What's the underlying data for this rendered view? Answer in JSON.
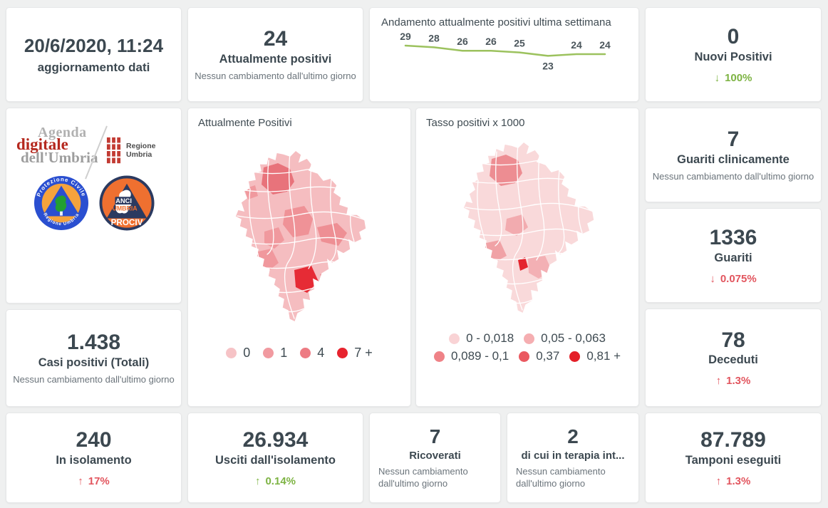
{
  "colors": {
    "green": "#7db343",
    "red": "#e2555e",
    "dark": "#3c4850",
    "gray": "#6b747b"
  },
  "cards": {
    "update": {
      "value": "20/6/2020, 11:24",
      "label": "aggiornamento dati"
    },
    "attualmente_positivi": {
      "value": "24",
      "label": "Attualmente positivi",
      "note": "Nessun cambiamento dall'ultimo giorno"
    },
    "nuovi_positivi": {
      "value": "0",
      "label": "Nuovi Positivi",
      "arrow": "↓",
      "delta": "100%",
      "trend_color": "green"
    },
    "guariti_clinicamente": {
      "value": "7",
      "label": "Guariti clinicamente",
      "note": "Nessun cambiamento dall'ultimo giorno"
    },
    "guariti": {
      "value": "1336",
      "label": "Guariti",
      "arrow": "↓",
      "delta": "0.075%",
      "trend_color": "red"
    },
    "deceduti": {
      "value": "78",
      "label": "Deceduti",
      "arrow": "↑",
      "delta": "1.3%",
      "trend_color": "red"
    },
    "casi_totali": {
      "value": "1.438",
      "label": "Casi positivi (Totali)",
      "note": "Nessun cambiamento dall'ultimo giorno"
    },
    "in_isolamento": {
      "value": "240",
      "label": "In isolamento",
      "arrow": "↑",
      "delta": "17%",
      "trend_color": "red"
    },
    "usciti_isolamento": {
      "value": "26.934",
      "label": "Usciti dall'isolamento",
      "arrow": "↑",
      "delta": "0.14%",
      "trend_color": "green"
    },
    "ricoverati": {
      "value": "7",
      "label": "Ricoverati",
      "note": "Nessun cambiamento dall'ultimo giorno"
    },
    "terapia_intensiva": {
      "value": "2",
      "label": "di cui in terapia int...",
      "note": "Nessun cambiamento dall'ultimo giorno"
    },
    "tamponi": {
      "value": "87.789",
      "label": "Tamponi eseguiti",
      "arrow": "↑",
      "delta": "1.3%",
      "trend_color": "red"
    }
  },
  "chart_data": {
    "type": "line",
    "title": "Andamento attualmente positivi ultima settimana",
    "values": [
      29,
      28,
      26,
      26,
      25,
      23,
      24,
      24
    ],
    "line_color": "#9cc25e",
    "label_below_index": 5,
    "legend_position": "none",
    "grid": false
  },
  "maps": {
    "attualmente": {
      "title": "Attualmente Positivi",
      "legend": [
        {
          "label": "0",
          "color": "#f6c3c6"
        },
        {
          "label": "1",
          "color": "#f19aa0"
        },
        {
          "label": "4",
          "color": "#ed7b83"
        },
        {
          "label": "7 +",
          "color": "#e7232e"
        }
      ]
    },
    "tasso": {
      "title": "Tasso positivi x 1000",
      "legend": [
        {
          "label": "0 - 0,018",
          "color": "#f9d3d5"
        },
        {
          "label": "0,05 - 0,063",
          "color": "#f5aeb1"
        },
        {
          "label": "0,089 - 0,1",
          "color": "#ef8287"
        },
        {
          "label": "0,37",
          "color": "#ea5960"
        },
        {
          "label": "0,81 +",
          "color": "#e41f28"
        }
      ]
    }
  },
  "logos": {
    "agenda": {
      "line1": "Agenda",
      "line2": "digitale",
      "line3": "dell'Umbria"
    },
    "regione": {
      "label": "Regione Umbria"
    },
    "protezione_civile": {
      "top": "Protezione Civile",
      "bottom": "Regione Umbria"
    },
    "anci": {
      "line1": "ANCI",
      "line2": "UMBRIA",
      "line3": "PROCIV"
    }
  }
}
